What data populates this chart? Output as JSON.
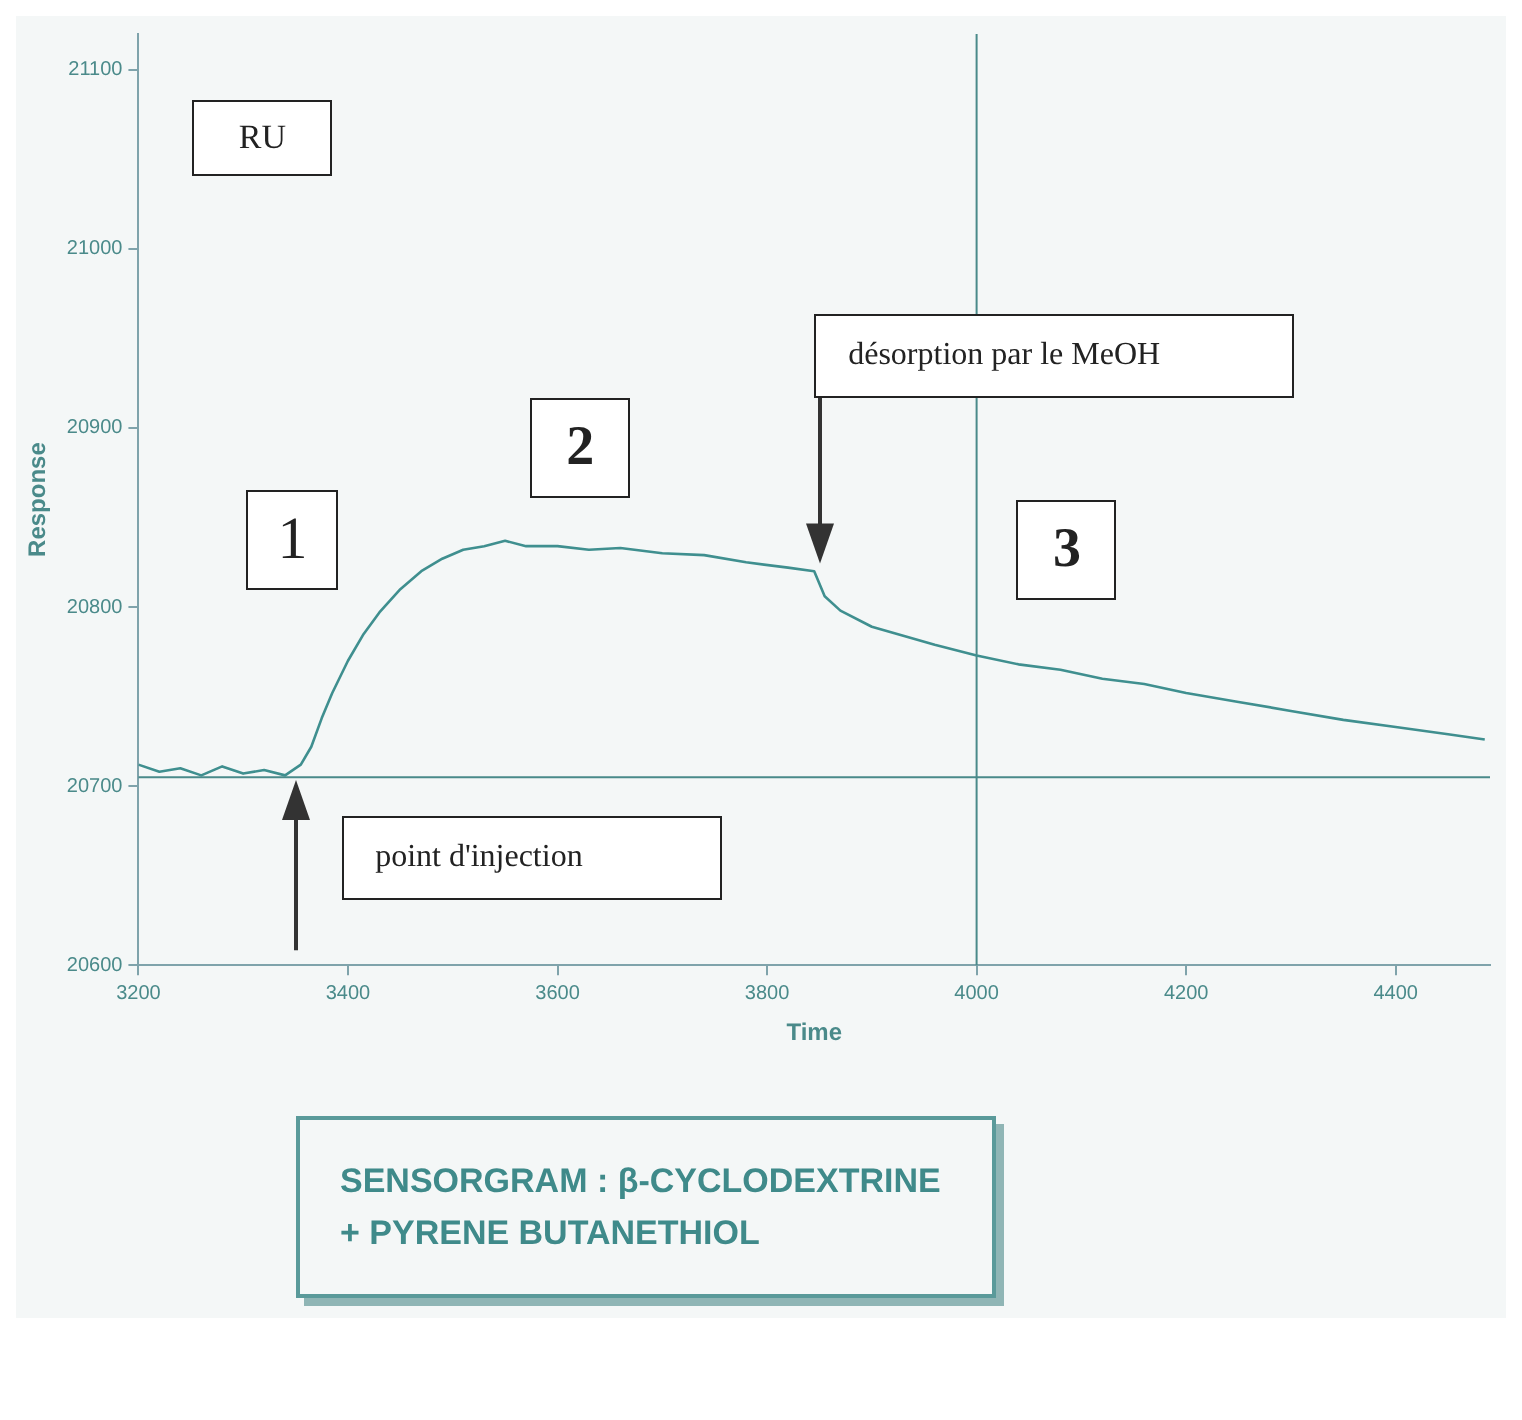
{
  "chart_data": {
    "type": "line",
    "title": "SENSORGRAM :  β-CYCLODEXTRINE + PYRENE BUTANETHIOL",
    "xlabel": "Time",
    "ylabel": "Response",
    "annotations": [
      "RU",
      "1",
      "2",
      "3",
      "point d'injection",
      "désorption par le MeOH"
    ],
    "x": [
      3200,
      3220,
      3240,
      3260,
      3280,
      3300,
      3320,
      3340,
      3355,
      3365,
      3375,
      3385,
      3400,
      3415,
      3430,
      3450,
      3470,
      3490,
      3510,
      3530,
      3550,
      3570,
      3600,
      3630,
      3660,
      3700,
      3740,
      3780,
      3820,
      3845,
      3855,
      3870,
      3900,
      3930,
      3960,
      4000,
      4040,
      4080,
      4120,
      4160,
      4200,
      4250,
      4300,
      4350,
      4400,
      4450,
      4485
    ],
    "series": [
      {
        "color": "#3f8f8f",
        "values": [
          20712,
          20708,
          20710,
          20706,
          20711,
          20707,
          20709,
          20706,
          20712,
          20722,
          20738,
          20752,
          20770,
          20785,
          20797,
          20810,
          20820,
          20827,
          20832,
          20834,
          20837,
          20834,
          20834,
          20832,
          20833,
          20830,
          20829,
          20825,
          20822,
          20820,
          20806,
          20798,
          20789,
          20784,
          20779,
          20773,
          20768,
          20765,
          20760,
          20757,
          20752,
          20747,
          20742,
          20737,
          20733,
          20729,
          20726
        ]
      }
    ],
    "xlim": [
      3200,
      4490
    ],
    "ylim": [
      20600,
      21120
    ],
    "xticks": [
      3200,
      3400,
      3600,
      3800,
      4000,
      4200,
      4400
    ],
    "yticks": [
      20600,
      20700,
      20800,
      20900,
      21000,
      21100
    ],
    "ref_lines": [
      {
        "axis": "y",
        "value": 20705,
        "color": "#4a8a8a"
      },
      {
        "axis": "x",
        "value": 4000,
        "color": "#4a8a8a"
      }
    ],
    "grid": false,
    "legend": false,
    "marker": "none",
    "line_style": "solid"
  }
}
